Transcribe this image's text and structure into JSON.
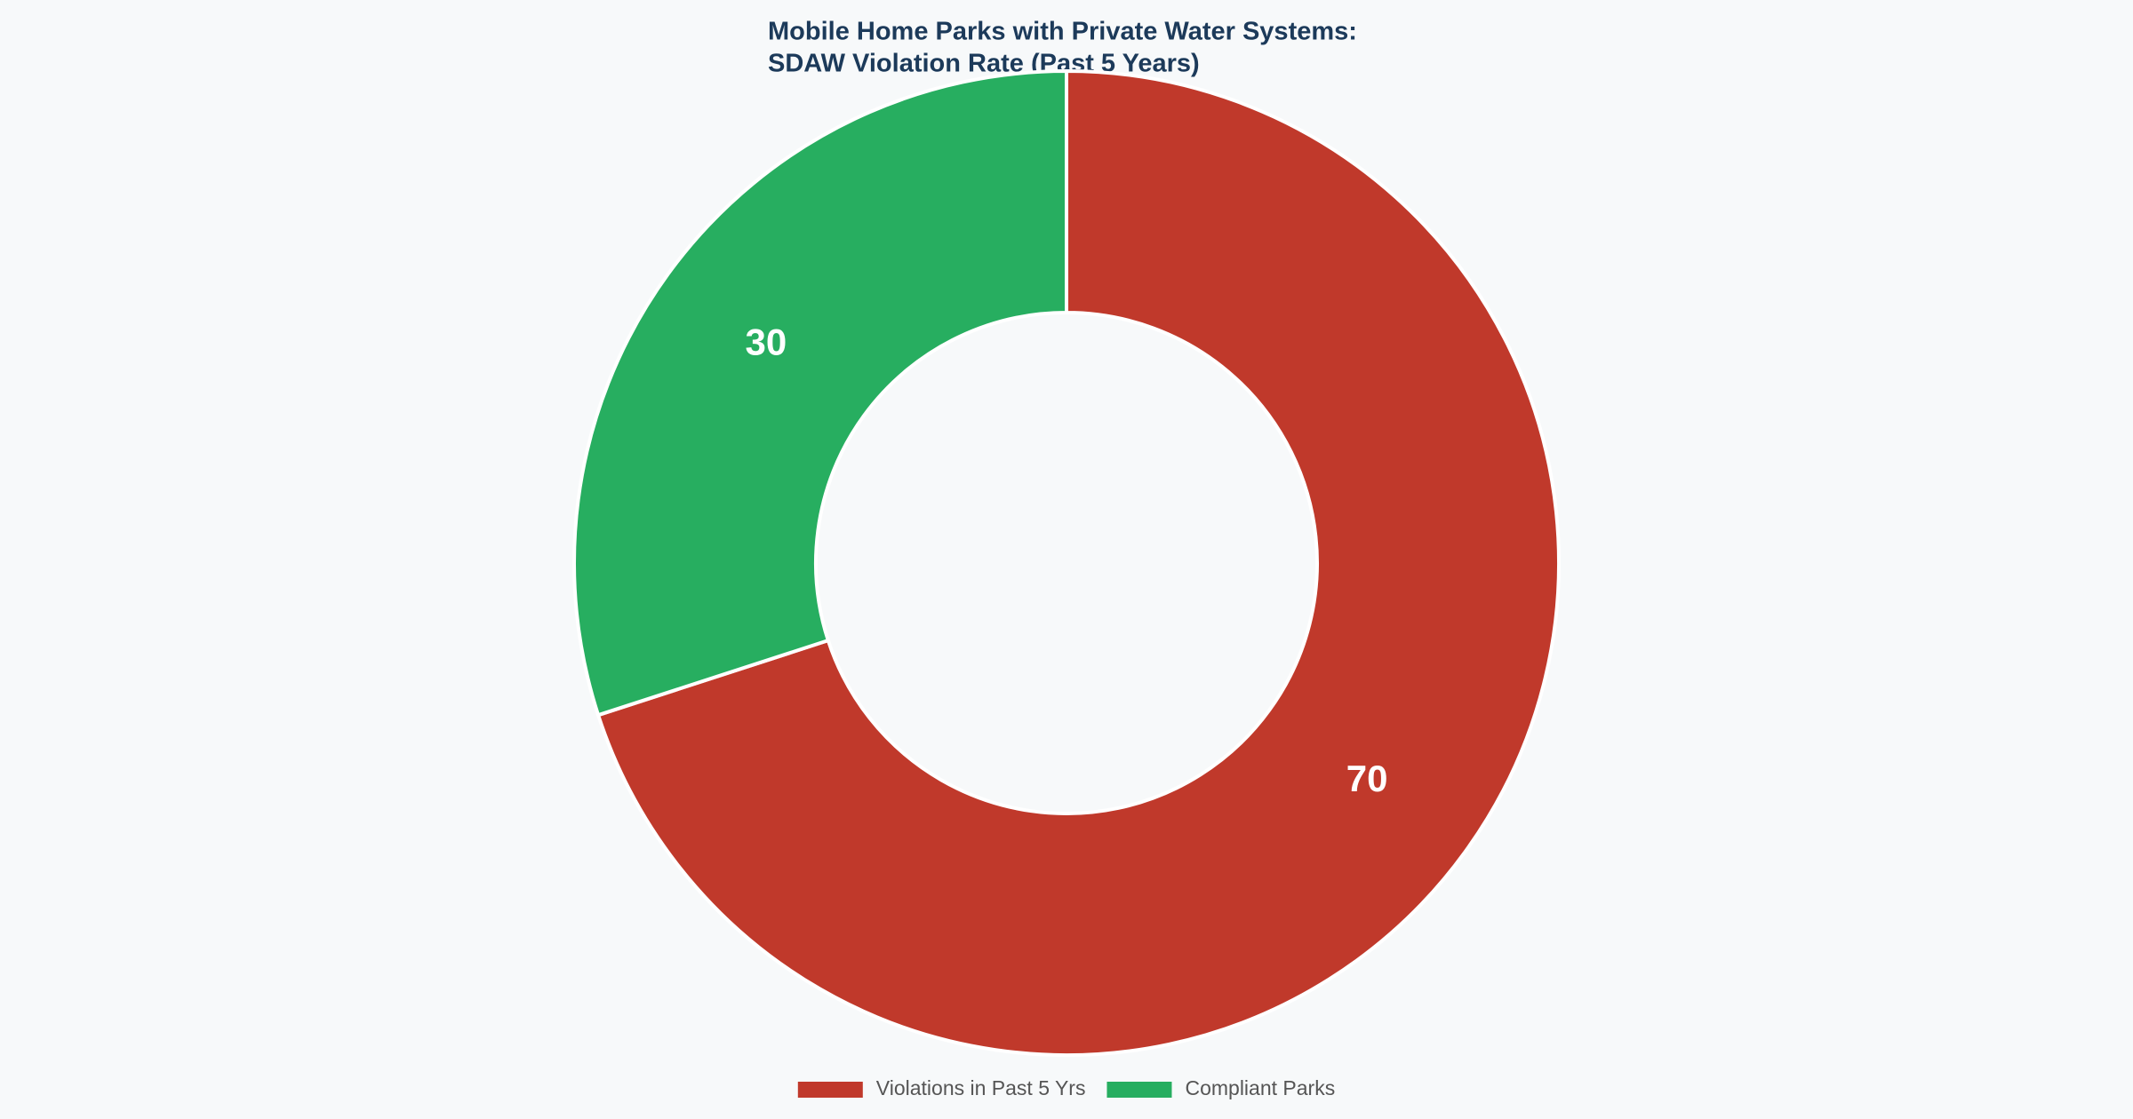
{
  "chart_data": {
    "type": "pie",
    "title": [
      "Mobile Home Parks with Private Water Systems:",
      "SDAW Violation Rate (Past 5 Years)"
    ],
    "categories": [
      "Violations in Past 5 Yrs",
      "Compliant Parks"
    ],
    "values": [
      70,
      30
    ],
    "colors": [
      "#c0392b",
      "#27ae60"
    ],
    "legend": "bottom"
  }
}
